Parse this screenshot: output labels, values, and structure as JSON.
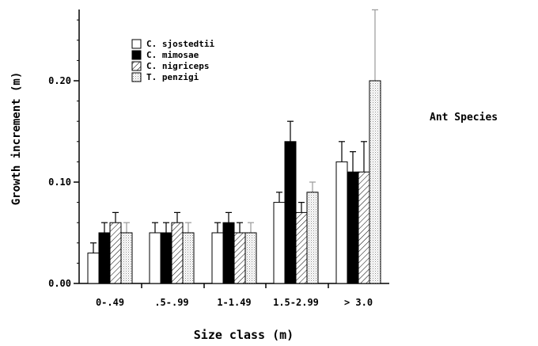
{
  "chart_data": {
    "type": "bar",
    "xlabel": "Size class (m)",
    "ylabel": "Growth increment (m)",
    "legend_title": "Ant Species",
    "legend_position": "top-left",
    "ylim": [
      0,
      0.3
    ],
    "yticks": [
      "0.00",
      "0.10",
      "0.20"
    ],
    "ytick_values": [
      0,
      0.1,
      0.2
    ],
    "categories": [
      "0-.49",
      ".5-.99",
      "1-1.49",
      "1.5-2.99",
      "> 3.0"
    ],
    "grid": false,
    "series": [
      {
        "name": "C. sjostedtii",
        "fill": "white",
        "values": [
          0.03,
          0.05,
          0.05,
          0.08,
          0.12
        ],
        "errors": [
          0.01,
          0.01,
          0.01,
          0.01,
          0.02
        ]
      },
      {
        "name": "C. mimosae",
        "fill": "black",
        "values": [
          0.05,
          0.05,
          0.06,
          0.14,
          0.11
        ],
        "errors": [
          0.01,
          0.01,
          0.01,
          0.02,
          0.02
        ]
      },
      {
        "name": "C. nigriceps",
        "fill": "hatched",
        "values": [
          0.06,
          0.06,
          0.05,
          0.07,
          0.11
        ],
        "errors": [
          0.01,
          0.01,
          0.01,
          0.01,
          0.03
        ]
      },
      {
        "name": "T. penzigi",
        "fill": "stippled",
        "values": [
          0.05,
          0.05,
          0.05,
          0.09,
          0.2
        ],
        "errors": [
          0.01,
          0.01,
          0.01,
          0.01,
          0.07
        ]
      }
    ]
  }
}
